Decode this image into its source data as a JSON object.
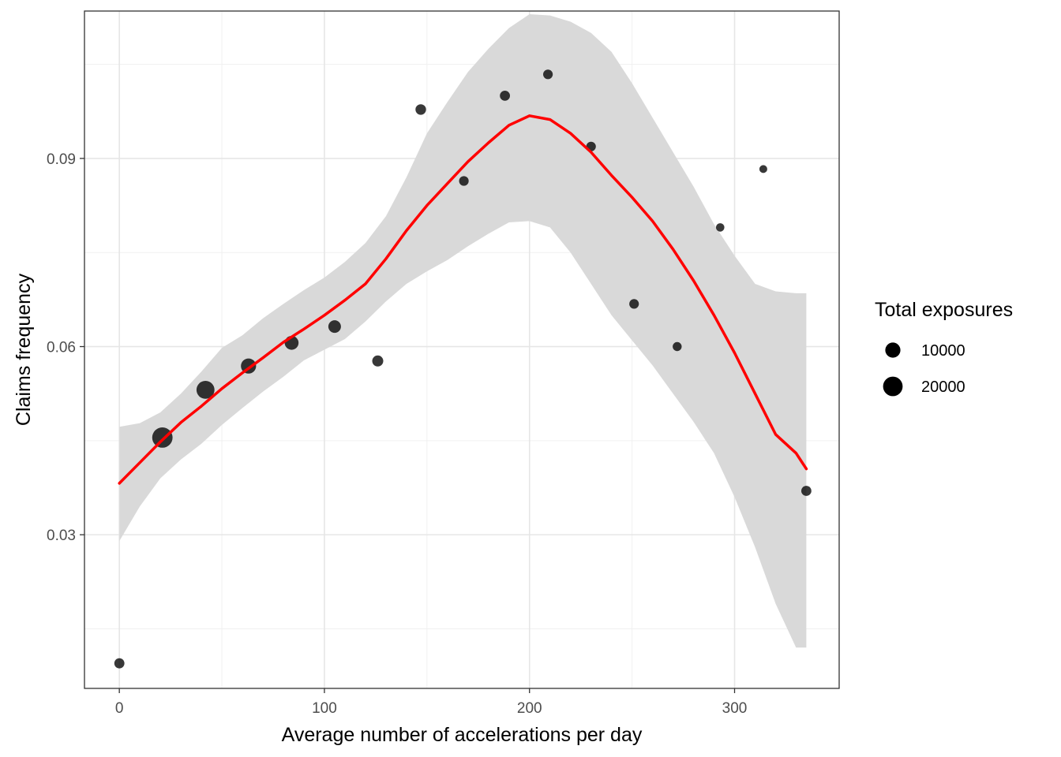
{
  "chart_data": {
    "type": "scatter",
    "title": "",
    "xlabel": "Average number of accelerations per day",
    "ylabel": "Claims frequency",
    "xlim": [
      -17,
      351
    ],
    "ylim": [
      0.0055,
      0.1135
    ],
    "x_ticks": [
      0,
      100,
      200,
      300
    ],
    "x_tick_labels": [
      "0",
      "100",
      "200",
      "300"
    ],
    "y_ticks": [
      0.03,
      0.06,
      0.09
    ],
    "y_tick_labels": [
      "0.03",
      "0.06",
      "0.09"
    ],
    "x_minor_ticks": [
      50,
      150,
      250
    ],
    "y_minor_ticks": [
      0.015,
      0.045,
      0.075,
      0.105
    ],
    "grid": true,
    "points": {
      "color": "#000000",
      "x": [
        0,
        21,
        42,
        63,
        84,
        105,
        126,
        147,
        168,
        188,
        209,
        230,
        251,
        272,
        293,
        314,
        335
      ],
      "y": [
        0.0095,
        0.0455,
        0.0531,
        0.0569,
        0.0606,
        0.0632,
        0.0577,
        0.0978,
        0.0864,
        0.1,
        0.1034,
        0.0919,
        0.0668,
        0.06,
        0.079,
        0.0883,
        0.037
      ],
      "exposure": [
        3000,
        22000,
        16000,
        10000,
        8000,
        6000,
        4000,
        3500,
        2500,
        3000,
        2500,
        2500,
        2500,
        2000,
        1500,
        1200,
        3000
      ]
    },
    "smooth": {
      "name": "loess",
      "color": "#ff0000",
      "band_color": "#d9d9d9",
      "x": [
        0,
        10,
        20,
        30,
        40,
        50,
        60,
        70,
        80,
        90,
        100,
        110,
        120,
        130,
        140,
        150,
        160,
        170,
        180,
        190,
        200,
        210,
        220,
        230,
        240,
        250,
        260,
        270,
        280,
        290,
        300,
        310,
        320,
        330,
        335
      ],
      "y": [
        0.0382,
        0.0415,
        0.0448,
        0.0479,
        0.0505,
        0.0533,
        0.0558,
        0.0582,
        0.0607,
        0.0628,
        0.065,
        0.0674,
        0.07,
        0.074,
        0.0785,
        0.0825,
        0.086,
        0.0895,
        0.0925,
        0.0953,
        0.0968,
        0.0962,
        0.094,
        0.091,
        0.0873,
        0.0838,
        0.08,
        0.0755,
        0.0705,
        0.065,
        0.059,
        0.0525,
        0.046,
        0.043,
        0.0405
      ],
      "lower": [
        0.029,
        0.0345,
        0.039,
        0.042,
        0.0445,
        0.0475,
        0.0502,
        0.0528,
        0.0552,
        0.0578,
        0.0595,
        0.0612,
        0.064,
        0.0672,
        0.07,
        0.072,
        0.0738,
        0.076,
        0.078,
        0.0798,
        0.08,
        0.079,
        0.075,
        0.07,
        0.065,
        0.061,
        0.057,
        0.0525,
        0.048,
        0.043,
        0.036,
        0.028,
        0.019,
        0.012,
        0.012
      ],
      "upper": [
        0.0472,
        0.0478,
        0.0495,
        0.0525,
        0.056,
        0.0598,
        0.0618,
        0.0645,
        0.0668,
        0.069,
        0.071,
        0.0735,
        0.0765,
        0.0808,
        0.087,
        0.094,
        0.099,
        0.1038,
        0.1075,
        0.1108,
        0.113,
        0.1128,
        0.1118,
        0.11,
        0.107,
        0.102,
        0.0965,
        0.091,
        0.0855,
        0.0795,
        0.0745,
        0.07,
        0.0688,
        0.0685,
        0.0685
      ]
    },
    "legend": {
      "title": "Total exposures",
      "position": "right",
      "entries": [
        {
          "label": "10000",
          "value": 10000
        },
        {
          "label": "20000",
          "value": 20000
        }
      ]
    }
  }
}
